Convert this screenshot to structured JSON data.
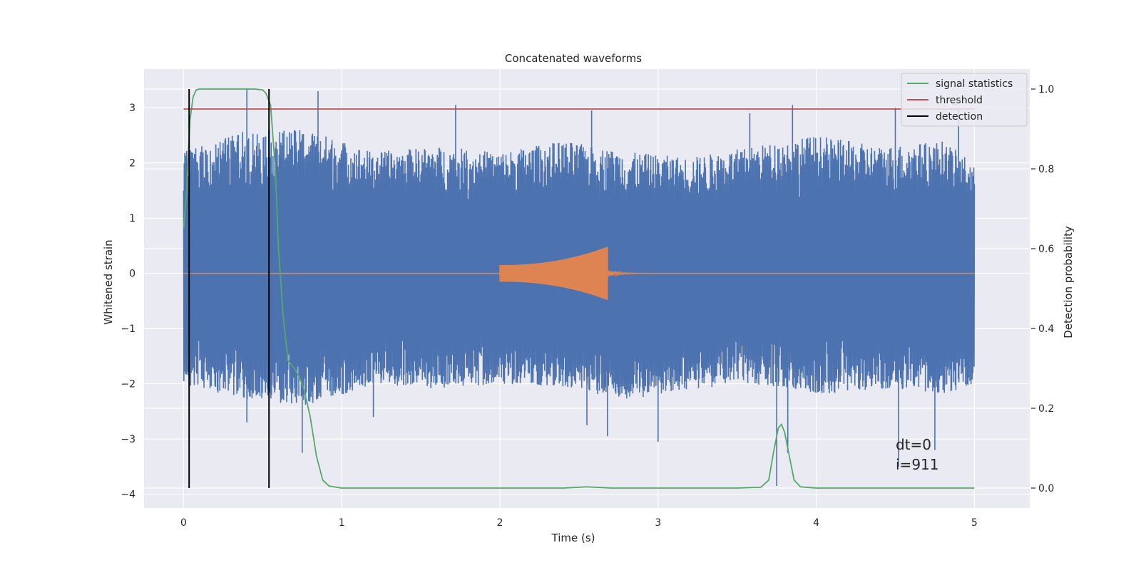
{
  "chart_data": {
    "type": "line",
    "title": "Concatenated waveforms",
    "xlabel": "Time (s)",
    "ylabel": "Whitened strain",
    "y2label": "Detection probability",
    "xlim": [
      -0.25,
      5.35
    ],
    "ylim": [
      -4.25,
      3.7
    ],
    "y2lim": [
      -0.05,
      1.05
    ],
    "grid": true,
    "xticks": [
      0,
      1,
      2,
      3,
      4,
      5
    ],
    "xtick_labels": [
      "0",
      "1",
      "2",
      "3",
      "4",
      "5"
    ],
    "yticks": [
      -4,
      -3,
      -2,
      -1,
      0,
      1,
      2,
      3
    ],
    "ytick_labels": [
      "−4",
      "−3",
      "−2",
      "−1",
      "0",
      "1",
      "2",
      "3"
    ],
    "y2ticks": [
      0.0,
      0.2,
      0.4,
      0.6,
      0.8,
      1.0
    ],
    "y2tick_labels": [
      "0.0",
      "0.2",
      "0.4",
      "0.6",
      "0.8",
      "1.0"
    ],
    "legend_position": "top-right",
    "series": [
      {
        "name": "strain",
        "axis": "left",
        "color": "#4c72b0",
        "kind": "noise",
        "x_range": [
          0,
          5
        ],
        "envelope_pos": [
          [
            0,
            2.2
          ],
          [
            0.4,
            2.6
          ],
          [
            0.8,
            2.6
          ],
          [
            1.2,
            2.2
          ],
          [
            1.6,
            2.3
          ],
          [
            2.0,
            2.2
          ],
          [
            2.4,
            2.4
          ],
          [
            2.8,
            2.2
          ],
          [
            3.2,
            2.1
          ],
          [
            3.6,
            2.3
          ],
          [
            4.0,
            2.5
          ],
          [
            4.4,
            2.3
          ],
          [
            4.8,
            2.4
          ],
          [
            5.0,
            2.0
          ]
        ],
        "envelope_neg": [
          [
            0,
            -2.0
          ],
          [
            0.4,
            -2.3
          ],
          [
            0.8,
            -2.4
          ],
          [
            1.2,
            -2.0
          ],
          [
            1.6,
            -2.1
          ],
          [
            2.0,
            -2.0
          ],
          [
            2.4,
            -2.1
          ],
          [
            2.8,
            -2.3
          ],
          [
            3.2,
            -2.1
          ],
          [
            3.6,
            -2.0
          ],
          [
            4.0,
            -2.2
          ],
          [
            4.4,
            -2.1
          ],
          [
            4.8,
            -2.2
          ],
          [
            5.0,
            -2.0
          ]
        ],
        "spikes": [
          [
            0.4,
            3.35
          ],
          [
            0.85,
            3.3
          ],
          [
            1.72,
            3.05
          ],
          [
            2.58,
            2.95
          ],
          [
            3.58,
            2.9
          ],
          [
            3.85,
            3.05
          ],
          [
            4.5,
            3.0
          ],
          [
            4.9,
            3.0
          ],
          [
            0.4,
            -2.7
          ],
          [
            0.75,
            -3.25
          ],
          [
            1.2,
            -2.6
          ],
          [
            2.55,
            -2.75
          ],
          [
            2.68,
            -2.95
          ],
          [
            3.0,
            -3.05
          ],
          [
            3.75,
            -3.85
          ],
          [
            3.82,
            -3.25
          ],
          [
            4.52,
            -3.5
          ],
          [
            4.75,
            -3.2
          ]
        ]
      },
      {
        "name": "injected waveform",
        "axis": "left",
        "color": "#dd8452",
        "kind": "chirp",
        "flat_range": [
          0,
          5
        ],
        "chirp_range": [
          2.0,
          2.68
        ],
        "amp_start": 0.15,
        "amp_end": 0.48,
        "ringdown_end": 3.0
      },
      {
        "name": "signal statistics",
        "axis": "right",
        "color": "#55a868",
        "x": [
          0.0,
          0.02,
          0.04,
          0.06,
          0.08,
          0.1,
          0.15,
          0.3,
          0.45,
          0.5,
          0.52,
          0.55,
          0.58,
          0.6,
          0.63,
          0.66,
          0.7,
          0.73,
          0.76,
          0.8,
          0.84,
          0.88,
          0.92,
          1.0,
          1.5,
          2.0,
          2.4,
          2.55,
          2.7,
          3.0,
          3.5,
          3.65,
          3.7,
          3.73,
          3.76,
          3.78,
          3.8,
          3.83,
          3.86,
          3.9,
          4.0,
          4.5,
          5.0
        ],
        "y": [
          0.65,
          0.75,
          0.92,
          0.98,
          0.998,
          1.0,
          1.0,
          1.0,
          1.0,
          0.998,
          0.99,
          0.96,
          0.8,
          0.6,
          0.43,
          0.32,
          0.3,
          0.28,
          0.25,
          0.18,
          0.08,
          0.02,
          0.005,
          0.0,
          0.0,
          0.0,
          0.0,
          0.003,
          0.0,
          0.0,
          0.0,
          0.002,
          0.02,
          0.09,
          0.15,
          0.16,
          0.14,
          0.08,
          0.02,
          0.003,
          0.0,
          0.0,
          0.0
        ]
      },
      {
        "name": "threshold",
        "axis": "right",
        "color": "#c44e52",
        "x": [
          0,
          5
        ],
        "y": [
          0.95,
          0.95
        ]
      },
      {
        "name": "detection",
        "axis": "right",
        "color": "#000000",
        "kind": "vlines",
        "x": [
          0.035,
          0.54
        ],
        "y": [
          0.0,
          1.0
        ]
      }
    ],
    "legend": [
      "signal statistics",
      "threshold",
      "detection"
    ],
    "annotation": [
      "dt=0",
      "i=911"
    ]
  }
}
